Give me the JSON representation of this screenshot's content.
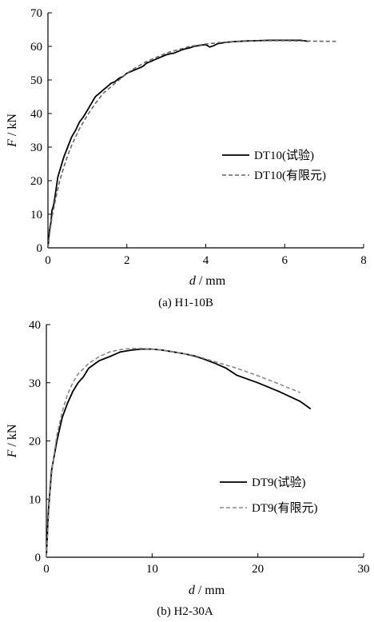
{
  "chart_data": [
    {
      "type": "line",
      "caption": "(a) H1-10B",
      "xlabel_var": "d",
      "xlabel_unit": " / mm",
      "ylabel_var": "F",
      "ylabel_unit": " / kN",
      "xlim": [
        0,
        8
      ],
      "ylim": [
        0,
        70
      ],
      "xticks": [
        "0",
        "2",
        "4",
        "6",
        "8"
      ],
      "yticks": [
        "0",
        "10",
        "20",
        "30",
        "40",
        "50",
        "60",
        "70"
      ],
      "legend_position": "right",
      "series": [
        {
          "name": "DT10(试验)",
          "style": "solid",
          "color": "#000000",
          "x": [
            0,
            0.02,
            0.05,
            0.08,
            0.1,
            0.15,
            0.2,
            0.25,
            0.3,
            0.35,
            0.4,
            0.5,
            0.6,
            0.7,
            0.8,
            0.9,
            1.0,
            1.1,
            1.2,
            1.3,
            1.4,
            1.5,
            1.6,
            1.7,
            1.8,
            1.9,
            2.0,
            2.1,
            2.2,
            2.3,
            2.4,
            2.5,
            2.6,
            2.7,
            2.8,
            2.9,
            3.0,
            3.1,
            3.2,
            3.3,
            3.4,
            3.5,
            3.6,
            3.7,
            3.8,
            3.9,
            4.0,
            4.1,
            4.2,
            4.3,
            4.4,
            4.5,
            4.7,
            5.0,
            5.3,
            5.6,
            6.0,
            6.4,
            6.6
          ],
          "y": [
            0,
            3,
            6,
            8,
            11,
            13,
            17,
            21,
            23,
            25,
            27,
            30,
            33,
            35,
            37.5,
            39,
            41,
            43,
            45,
            46,
            47,
            48,
            49,
            49.5,
            50.5,
            51,
            52,
            52.5,
            53,
            53.5,
            54,
            55,
            55.5,
            56,
            56.5,
            57,
            57.5,
            57.8,
            58,
            58.5,
            59,
            59.3,
            59.6,
            60,
            60.2,
            60.4,
            60.5,
            59.8,
            60.2,
            60.8,
            61,
            61.2,
            61.4,
            61.6,
            61.7,
            61.8,
            61.8,
            61.8,
            61.5
          ]
        },
        {
          "name": "DT10(有限元)",
          "style": "dashed",
          "color": "#666666",
          "x": [
            0,
            0.05,
            0.1,
            0.2,
            0.3,
            0.4,
            0.5,
            0.6,
            0.8,
            1.0,
            1.2,
            1.4,
            1.6,
            1.8,
            2.0,
            2.2,
            2.5,
            2.8,
            3.0,
            3.3,
            3.6,
            4.0,
            4.4,
            4.8,
            5.2,
            5.6,
            6.0,
            6.5,
            7.0,
            7.3
          ],
          "y": [
            0,
            5,
            9,
            15,
            20,
            24,
            27.5,
            30.5,
            35.5,
            39.5,
            43,
            46,
            48,
            50,
            52,
            53.5,
            55.5,
            57,
            58,
            59,
            60,
            60.7,
            61.2,
            61.5,
            61.6,
            61.7,
            61.7,
            61.6,
            61.5,
            61.5
          ]
        }
      ]
    },
    {
      "type": "line",
      "caption": "(b) H2-30A",
      "xlabel_var": "d",
      "xlabel_unit": " / mm",
      "ylabel_var": "F",
      "ylabel_unit": " / kN",
      "xlim": [
        0,
        30
      ],
      "ylim": [
        0,
        40
      ],
      "xticks": [
        "0",
        "10",
        "20",
        "30"
      ],
      "yticks": [
        "0",
        "10",
        "20",
        "30",
        "40"
      ],
      "legend_position": "right",
      "series": [
        {
          "name": "DT9(试验)",
          "style": "solid",
          "color": "#000000",
          "x": [
            0,
            0.2,
            0.5,
            1.0,
            1.5,
            2.0,
            2.5,
            3.0,
            3.5,
            4.0,
            5.0,
            6.0,
            7.0,
            8.0,
            9.0,
            10.0,
            11.0,
            12.0,
            13.0,
            14.0,
            15.0,
            16.0,
            17.0,
            18.0,
            20.0,
            22.0,
            24.0,
            25.0
          ],
          "y": [
            0,
            8,
            15,
            20,
            24,
            26.5,
            28.5,
            30,
            31,
            32.5,
            33.8,
            34.5,
            35.3,
            35.6,
            35.8,
            35.8,
            35.6,
            35.3,
            35,
            34.6,
            34,
            33.3,
            32.5,
            31.3,
            30,
            28.5,
            26.8,
            25.5
          ]
        },
        {
          "name": "DT9(有限元)",
          "style": "dashed",
          "color": "#888888",
          "x": [
            0,
            0.3,
            0.6,
            1.0,
            1.5,
            2.0,
            2.5,
            3.0,
            4.0,
            5.0,
            6.0,
            7.0,
            8.0,
            9.0,
            10.0,
            11.0,
            12.0,
            14.0,
            16.0,
            18.0,
            20.0,
            22.0,
            24.0
          ],
          "y": [
            0,
            10,
            16,
            21,
            25,
            28,
            30,
            31.5,
            33.3,
            34.5,
            35.3,
            35.7,
            35.9,
            35.9,
            35.8,
            35.6,
            35.3,
            34.7,
            33.6,
            32.5,
            31.2,
            29.8,
            28.3
          ]
        }
      ]
    }
  ]
}
